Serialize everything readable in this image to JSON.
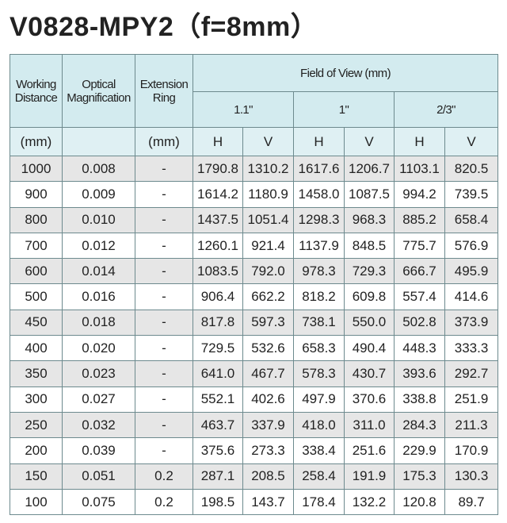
{
  "title": "V0828-MPY2（f=8mm）",
  "table": {
    "headers": [
      "Working Distance",
      "Optical Magnification",
      "Extension Ring",
      "Field of View (mm)"
    ],
    "sizes": [
      "1.1\"",
      "1\"",
      "2/3\""
    ],
    "units": [
      "(mm)",
      "(mm)"
    ],
    "axes": [
      "H",
      "V",
      "H",
      "V",
      "H",
      "V"
    ],
    "rows": [
      [
        "1000",
        "0.008",
        "-",
        "1790.8",
        "1310.2",
        "1617.6",
        "1206.7",
        "1103.1",
        "820.5"
      ],
      [
        "900",
        "0.009",
        "-",
        "1614.2",
        "1180.9",
        "1458.0",
        "1087.5",
        "994.2",
        "739.5"
      ],
      [
        "800",
        "0.010",
        "-",
        "1437.5",
        "1051.4",
        "1298.3",
        "968.3",
        "885.2",
        "658.4"
      ],
      [
        "700",
        "0.012",
        "-",
        "1260.1",
        "921.4",
        "1137.9",
        "848.5",
        "775.7",
        "576.9"
      ],
      [
        "600",
        "0.014",
        "-",
        "1083.5",
        "792.0",
        "978.3",
        "729.3",
        "666.7",
        "495.9"
      ],
      [
        "500",
        "0.016",
        "-",
        "906.4",
        "662.2",
        "818.2",
        "609.8",
        "557.4",
        "414.6"
      ],
      [
        "450",
        "0.018",
        "-",
        "817.8",
        "597.3",
        "738.1",
        "550.0",
        "502.8",
        "373.9"
      ],
      [
        "400",
        "0.020",
        "-",
        "729.5",
        "532.6",
        "658.3",
        "490.4",
        "448.3",
        "333.3"
      ],
      [
        "350",
        "0.023",
        "-",
        "641.0",
        "467.7",
        "578.3",
        "430.7",
        "393.6",
        "292.7"
      ],
      [
        "300",
        "0.027",
        "-",
        "552.1",
        "402.6",
        "497.9",
        "370.6",
        "338.8",
        "251.9"
      ],
      [
        "250",
        "0.032",
        "-",
        "463.7",
        "337.9",
        "418.0",
        "311.0",
        "284.3",
        "211.3"
      ],
      [
        "200",
        "0.039",
        "-",
        "375.6",
        "273.3",
        "338.4",
        "251.6",
        "229.9",
        "170.9"
      ],
      [
        "150",
        "0.051",
        "0.2",
        "287.1",
        "208.5",
        "258.4",
        "191.9",
        "175.3",
        "130.3"
      ],
      [
        "100",
        "0.075",
        "0.2",
        "198.5",
        "143.7",
        "178.4",
        "132.2",
        "120.8",
        "89.7"
      ]
    ]
  }
}
